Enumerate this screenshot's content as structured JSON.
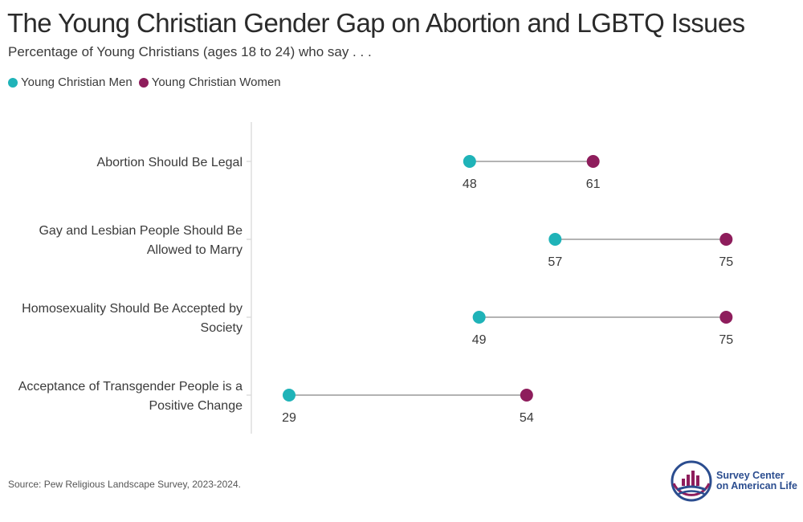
{
  "title": "The Young Christian Gender Gap on Abortion and LGBTQ Issues",
  "subtitle": "Percentage of Young Christians (ages 18 to 24) who say . . .",
  "source": "Source: Pew Religious Landscape Survey, 2023-2024.",
  "logo": {
    "line1": "Survey Center",
    "line2": "on American Life"
  },
  "colors": {
    "men": "#1fb3b8",
    "women": "#8e1d5c",
    "connector": "#b3b3b3",
    "axis": "#dddddd",
    "logo_blue": "#2b4d8f",
    "logo_purple": "#8e1d5c"
  },
  "chart_data": {
    "type": "dumbbell",
    "title": "The Young Christian Gender Gap on Abortion and LGBTQ Issues",
    "subtitle": "Percentage of Young Christians (ages 18 to 24) who say . . .",
    "legend_position": "top-left",
    "series": [
      {
        "name": "Young Christian Men",
        "color": "#1fb3b8",
        "values": [
          48,
          57,
          49,
          29
        ]
      },
      {
        "name": "Young Christian Women",
        "color": "#8e1d5c",
        "values": [
          61,
          75,
          75,
          54
        ]
      }
    ],
    "categories": [
      [
        "Abortion Should Be Legal"
      ],
      [
        "Gay and Lesbian People Should Be",
        "Allowed to Marry"
      ],
      [
        "Homosexuality Should Be Accepted by",
        "Society"
      ],
      [
        "Acceptance of Transgender People is a",
        "Positive Change"
      ]
    ]
  }
}
